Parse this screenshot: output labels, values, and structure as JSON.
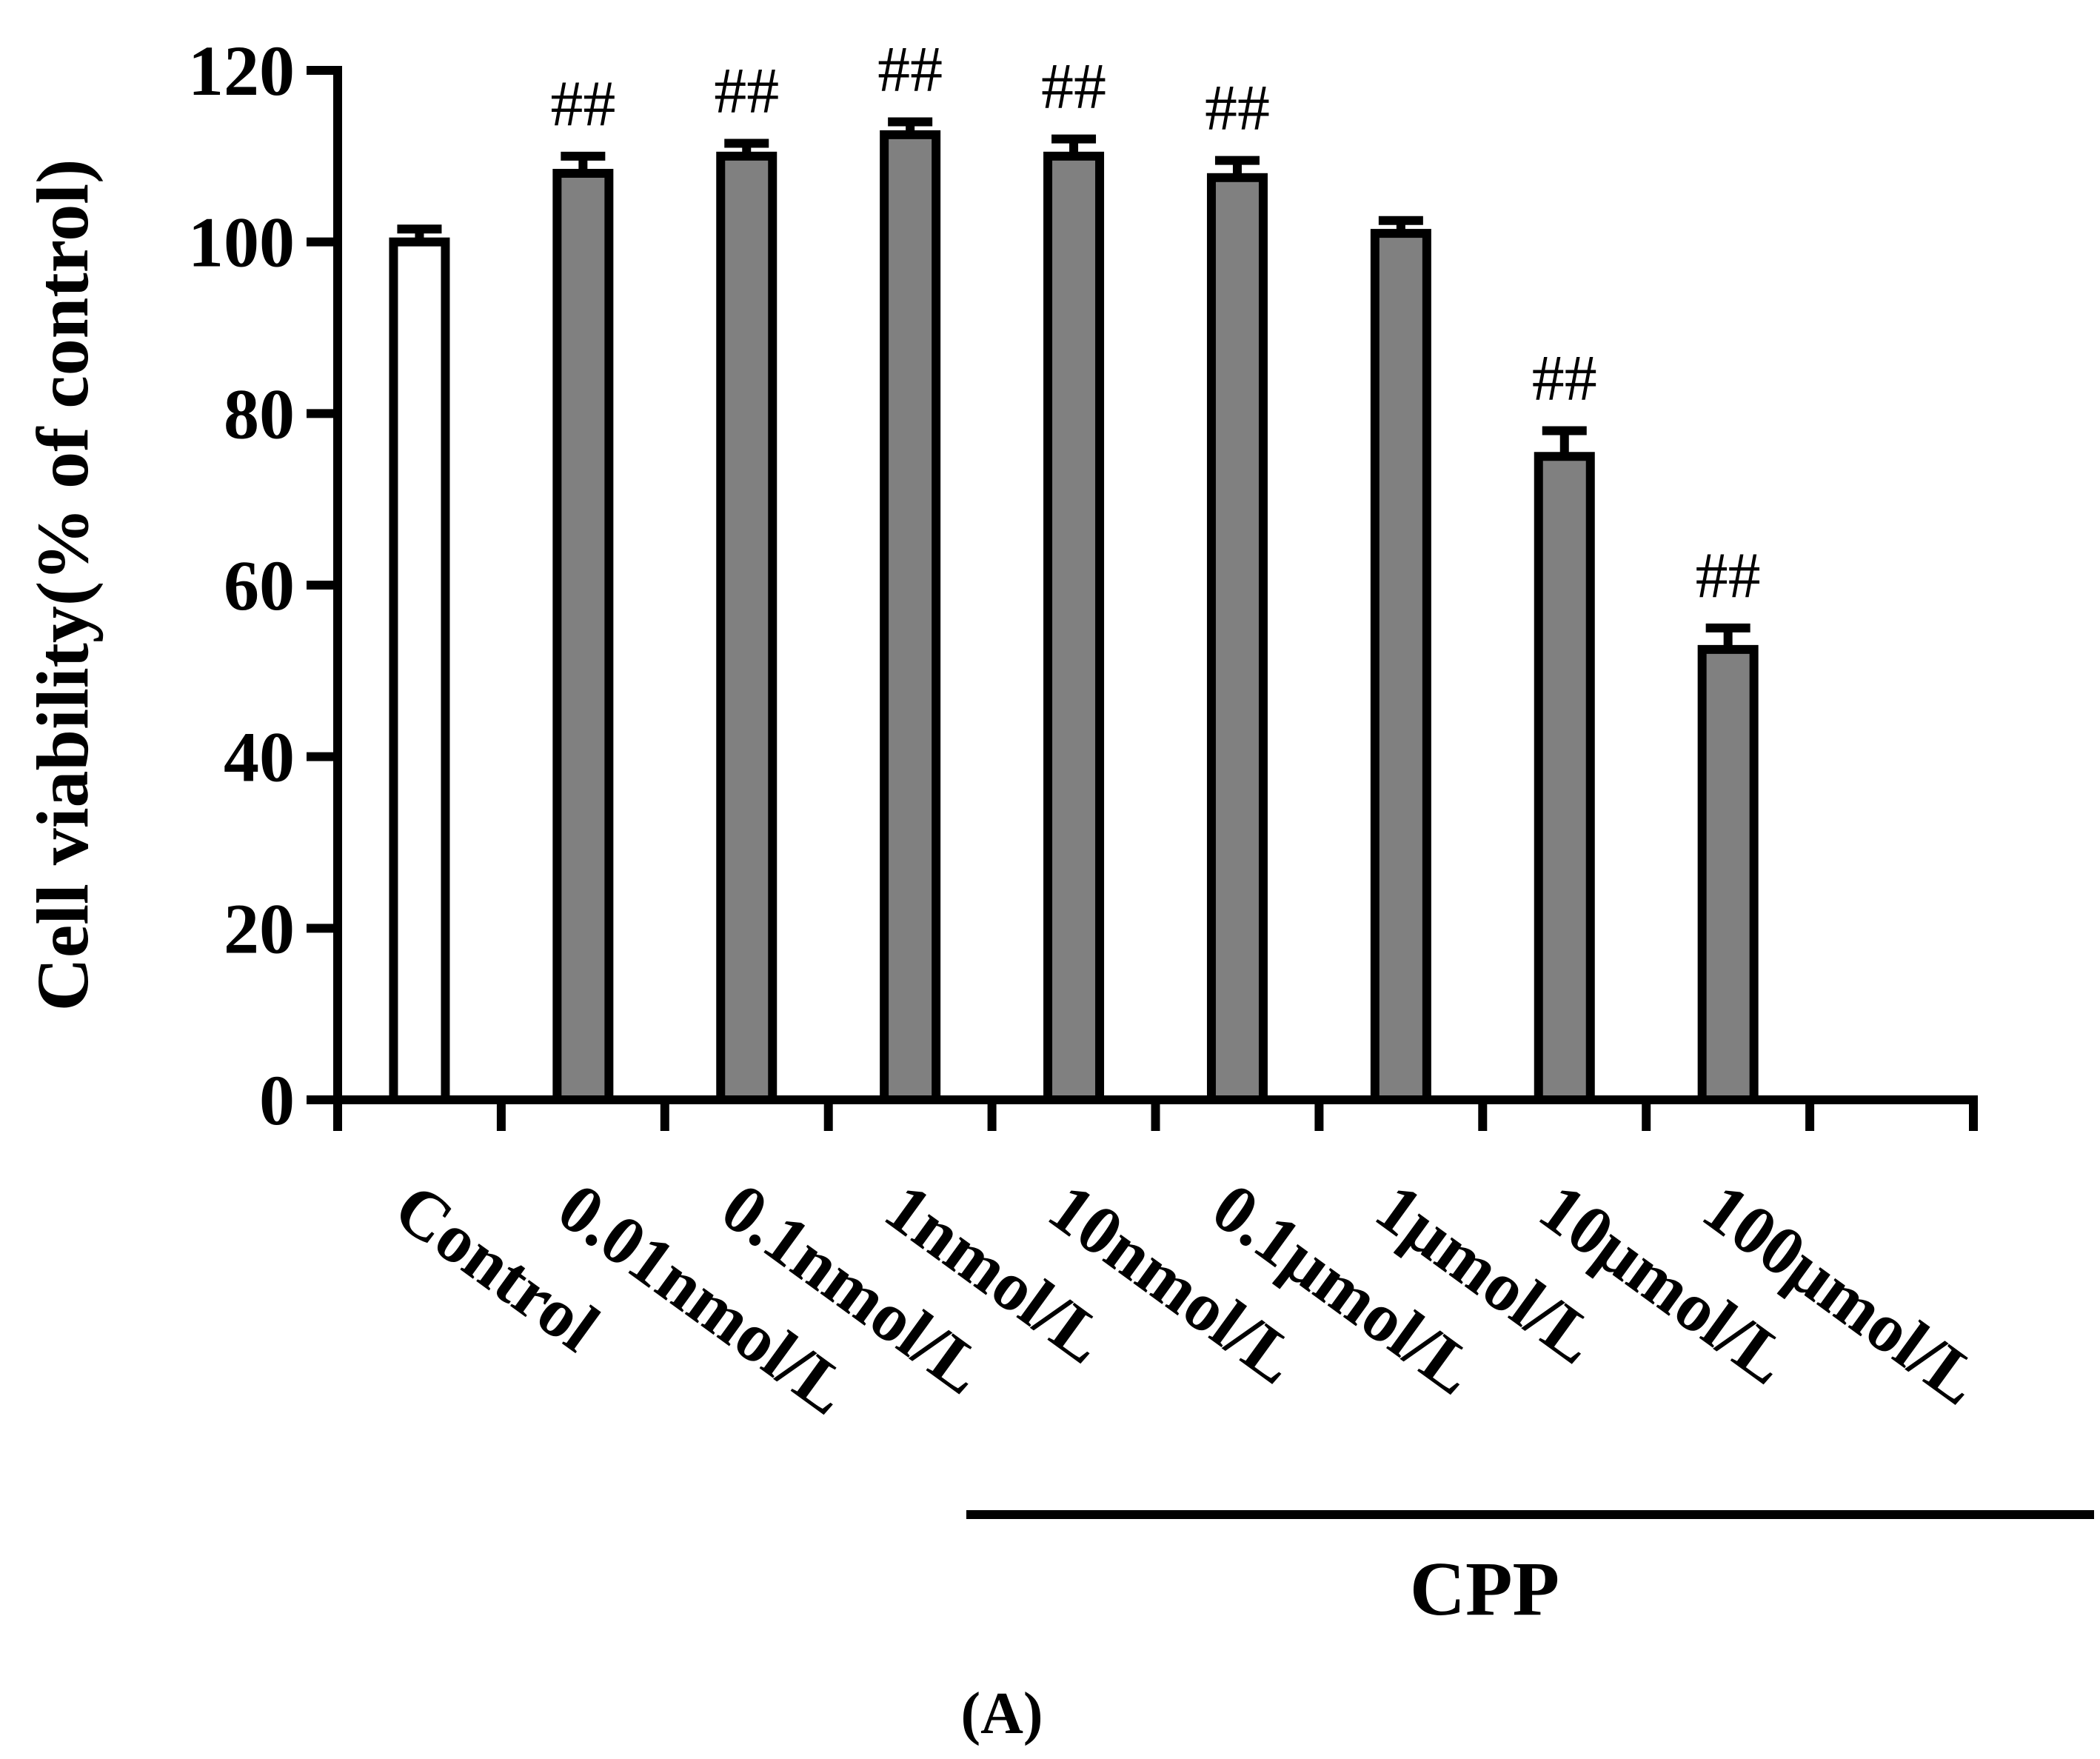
{
  "chart_data": {
    "type": "bar",
    "categories": [
      "Control",
      "0.01nmol/L",
      "0.1nmol/L",
      "1nmol/L",
      "10nmol/L",
      "0.1μmol/L",
      "1μmol/L",
      "10μmol/L",
      "100μmol/L"
    ],
    "values": [
      100,
      108,
      110,
      112.5,
      110,
      107.5,
      101,
      75,
      52.5
    ],
    "errors": [
      1.5,
      2,
      1.5,
      1.5,
      2,
      2,
      1.5,
      3,
      2.5
    ],
    "significance": [
      "",
      "##",
      "##",
      "##",
      "##",
      "##",
      "",
      "##",
      "##"
    ],
    "bar_fill": [
      "#ffffff",
      "#808080",
      "#808080",
      "#808080",
      "#808080",
      "#808080",
      "#808080",
      "#808080",
      "#808080"
    ],
    "ylabel": "Cell viability(% of control)",
    "xlabel": "",
    "ylim": [
      0,
      120
    ],
    "yticks": [
      0,
      20,
      40,
      60,
      80,
      100,
      120
    ],
    "group_label": "CPP",
    "panel_label": "(A)",
    "grid": false,
    "legend": "none"
  }
}
